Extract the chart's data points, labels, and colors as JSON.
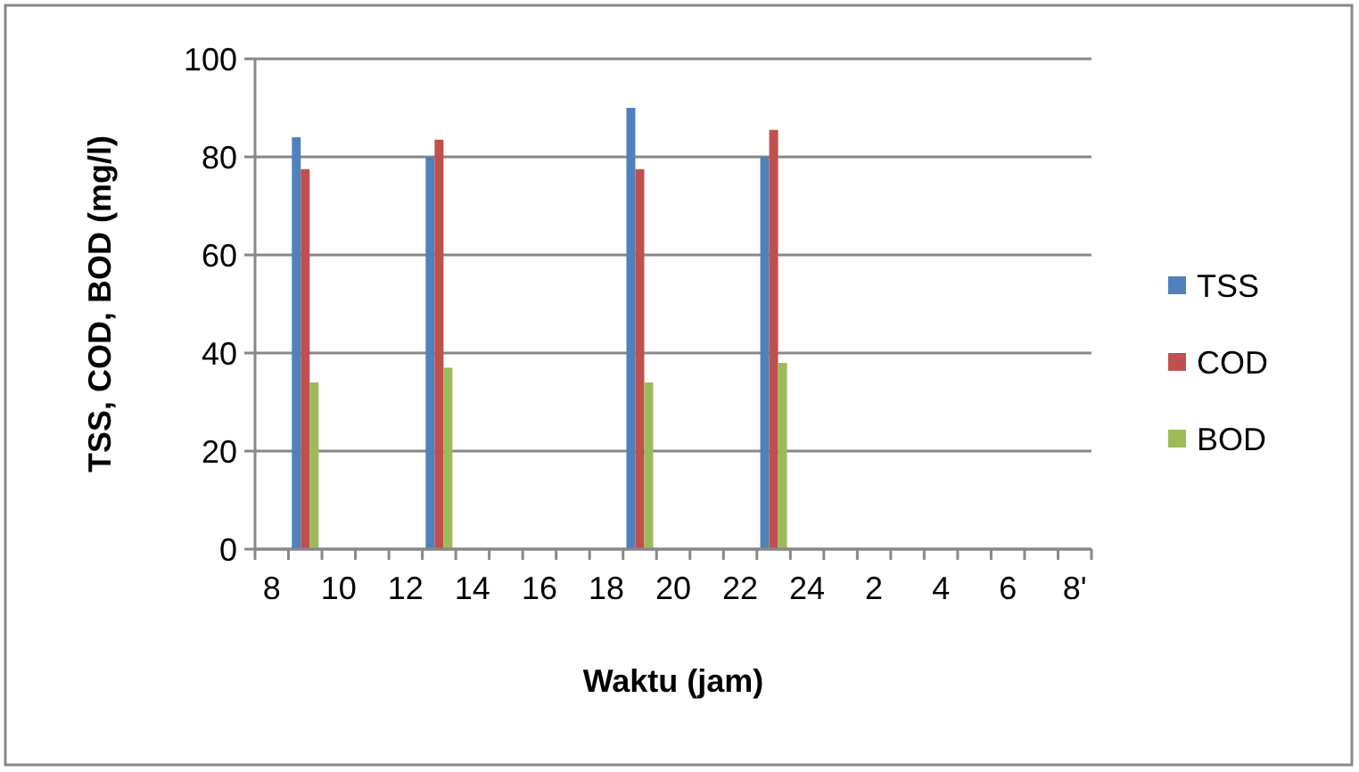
{
  "chart_data": {
    "type": "bar",
    "xlabel": "Waktu (jam)",
    "ylabel": "TSS, COD, BOD (mg/l)",
    "categories": [
      "8",
      null,
      "10",
      null,
      "12",
      null,
      "14",
      null,
      "16",
      null,
      "18",
      null,
      "20",
      null,
      "22",
      null,
      "24",
      null,
      "2",
      null,
      "4",
      null,
      "6",
      null,
      "8'"
    ],
    "series": [
      {
        "name": "TSS",
        "color": "#4f81bd",
        "values": [
          null,
          84,
          null,
          null,
          null,
          80,
          null,
          null,
          null,
          null,
          null,
          90,
          null,
          null,
          null,
          80,
          null,
          null,
          null,
          null,
          null,
          null,
          null,
          null,
          null
        ]
      },
      {
        "name": "COD",
        "color": "#c0504d",
        "values": [
          null,
          77.5,
          null,
          null,
          null,
          83.5,
          null,
          null,
          null,
          null,
          null,
          77.5,
          null,
          null,
          null,
          85.5,
          null,
          null,
          null,
          null,
          null,
          null,
          null,
          null,
          null
        ]
      },
      {
        "name": "BOD",
        "color": "#9bbb59",
        "values": [
          null,
          34,
          null,
          null,
          null,
          37,
          null,
          null,
          null,
          null,
          null,
          34,
          null,
          null,
          null,
          38,
          null,
          null,
          null,
          null,
          null,
          null,
          null,
          null,
          null
        ]
      }
    ],
    "ylim": [
      0,
      100
    ],
    "yticks": [
      0,
      20,
      40,
      60,
      80,
      100
    ],
    "grid": "y",
    "legend": "right"
  }
}
